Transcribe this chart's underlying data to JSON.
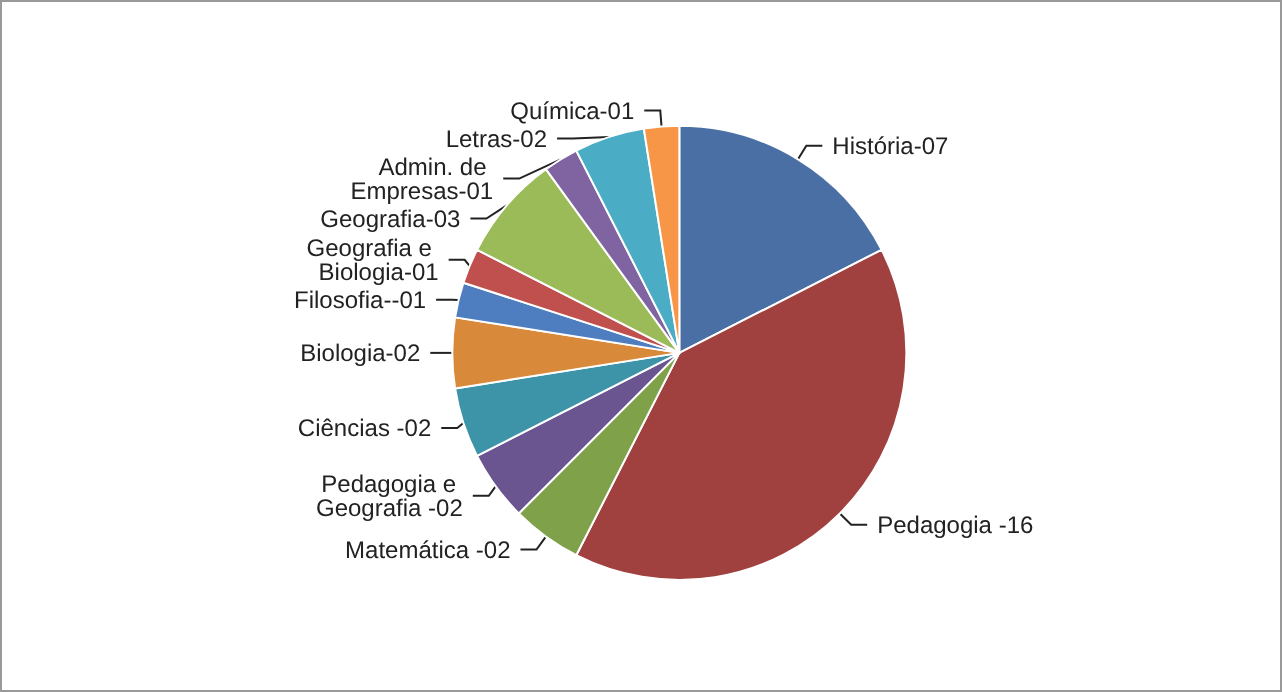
{
  "chart_data": {
    "type": "pie",
    "categories": [
      "História-07",
      "Pedagogia -16",
      "Matemática -02",
      "Pedagogia e Geografia -02",
      "Ciências -02",
      "Biologia-02",
      "Filosofia--01",
      "Geografia e Biologia-01",
      "Geografia-03",
      "Admin. de Empresas-01",
      "Letras-02",
      "Química-01"
    ],
    "values": [
      17.5,
      40,
      5,
      5,
      5,
      5,
      2.5,
      2.5,
      7.5,
      2.5,
      5,
      2.5
    ],
    "colors": [
      "#4a6fa5",
      "#a0413f",
      "#7ea14a",
      "#6b5590",
      "#3d93a8",
      "#d9893a",
      "#4f7ec0",
      "#c0504d",
      "#9bbb59",
      "#8064a2",
      "#4bacc6",
      "#f79646"
    ],
    "legend": false
  }
}
